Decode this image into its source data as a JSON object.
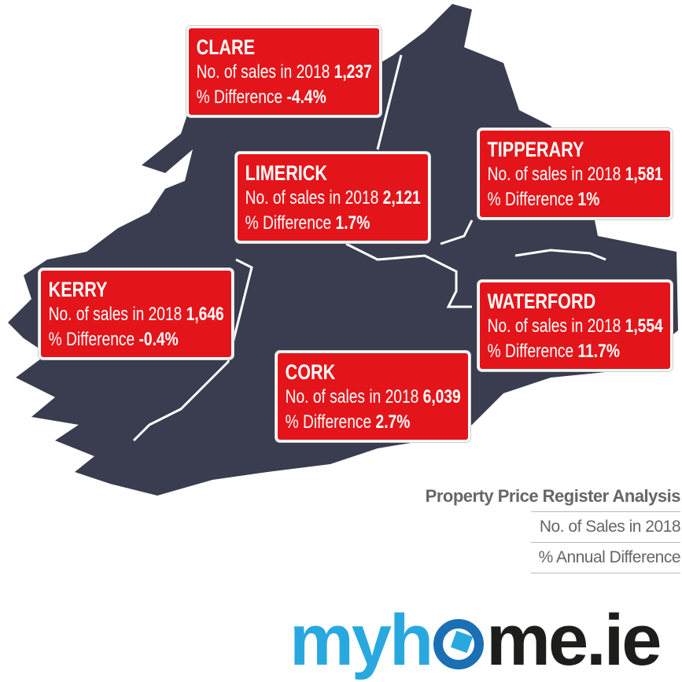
{
  "regions": [
    {
      "name": "CLARE",
      "sales_label": "No. of sales in 2018",
      "sales": "1,237",
      "diff_label": "% Difference",
      "diff": "-4.4%"
    },
    {
      "name": "LIMERICK",
      "sales_label": "No. of sales in 2018",
      "sales": "2,121",
      "diff_label": "% Difference",
      "diff": "1.7%"
    },
    {
      "name": "TIPPERARY",
      "sales_label": "No. of sales in 2018",
      "sales": "1,581",
      "diff_label": "% Difference",
      "diff": "1%"
    },
    {
      "name": "KERRY",
      "sales_label": "No. of sales in 2018",
      "sales": "1,646",
      "diff_label": "% Difference",
      "diff": "-0.4%"
    },
    {
      "name": "WATERFORD",
      "sales_label": "No. of sales in 2018",
      "sales": "1,554",
      "diff_label": "% Difference",
      "diff": "11.7%"
    },
    {
      "name": "CORK",
      "sales_label": "No. of sales in 2018",
      "sales": "6,039",
      "diff_label": "% Difference",
      "diff": "2.7%"
    }
  ],
  "legend": {
    "title": "Property Price Register Analysis",
    "items": [
      "No. of Sales in 2018",
      "% Annual Difference"
    ]
  },
  "logo": {
    "first": "myh",
    "last": "me.ie"
  }
}
